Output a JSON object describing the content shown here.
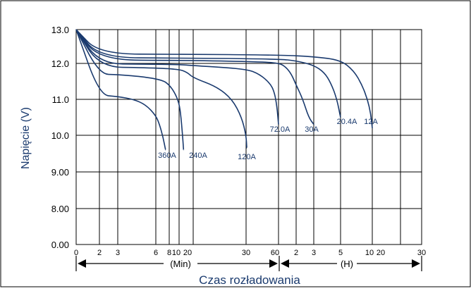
{
  "chart_data": {
    "type": "line",
    "ylabel": "Napięcie (V)",
    "xlabel": "Czas rozładowania",
    "x_scale": "log (minutes and hours)",
    "grid": true,
    "yticks": [
      "0.00",
      "8.00",
      "9.00",
      "10.0",
      "11.0",
      "12.0",
      "13.0"
    ],
    "xticks_min": [
      "0",
      "2",
      "3",
      "6",
      "8",
      "10",
      "20",
      "30",
      "60"
    ],
    "xticks_hour": [
      "2",
      "3",
      "5",
      "10",
      "20",
      "30"
    ],
    "x_unit_min": "(Min)",
    "x_unit_hour": "(H)",
    "colors": {
      "curve": "#1a3a6e",
      "text": "#1a3a6e",
      "grid": "#000000"
    },
    "series": [
      {
        "name": "360A",
        "points": [
          [
            0,
            13.0
          ],
          [
            2,
            11.12
          ],
          [
            3,
            11.08
          ],
          [
            4,
            11.0
          ],
          [
            5,
            10.85
          ],
          [
            6,
            10.55
          ],
          [
            6.5,
            10.3
          ],
          [
            7,
            9.95
          ],
          [
            7.4,
            9.6
          ]
        ]
      },
      {
        "name": "240A",
        "points": [
          [
            0,
            13.0
          ],
          [
            2,
            11.7
          ],
          [
            3,
            11.69
          ],
          [
            5,
            11.62
          ],
          [
            7,
            11.53
          ],
          [
            8,
            11.4
          ],
          [
            9,
            11.2
          ],
          [
            10,
            10.9
          ],
          [
            11,
            10.5
          ],
          [
            12,
            9.9
          ],
          [
            12.5,
            9.6
          ]
        ]
      },
      {
        "name": "120A",
        "points": [
          [
            0,
            13.0
          ],
          [
            2,
            11.9
          ],
          [
            5,
            11.88
          ],
          [
            10,
            11.84
          ],
          [
            15,
            11.75
          ],
          [
            20,
            11.6
          ],
          [
            24,
            11.35
          ],
          [
            27,
            11.0
          ],
          [
            29,
            10.5
          ],
          [
            30,
            10.0
          ],
          [
            30.5,
            9.65
          ]
        ]
      },
      {
        "name": "72.0A",
        "points": [
          [
            0,
            13.0
          ],
          [
            2,
            11.99
          ],
          [
            5,
            11.98
          ],
          [
            10,
            11.97
          ],
          [
            20,
            11.94
          ],
          [
            30,
            11.85
          ],
          [
            40,
            11.7
          ],
          [
            50,
            11.45
          ],
          [
            55,
            11.2
          ],
          [
            58,
            10.8
          ],
          [
            60,
            10.3
          ]
        ]
      },
      {
        "name": "30A",
        "points": [
          [
            0,
            13.0
          ],
          [
            2,
            12.1
          ],
          [
            10,
            12.09
          ],
          [
            30,
            12.06
          ],
          [
            60,
            12.02
          ],
          [
            80,
            11.9
          ],
          [
            100,
            11.7
          ],
          [
            120,
            11.4
          ],
          [
            140,
            11.0
          ],
          [
            160,
            10.5
          ],
          [
            180,
            10.3
          ]
        ]
      },
      {
        "name": "20.4A",
        "points": [
          [
            0,
            13.0
          ],
          [
            2,
            12.17
          ],
          [
            10,
            12.16
          ],
          [
            60,
            12.13
          ],
          [
            120,
            12.08
          ],
          [
            180,
            11.95
          ],
          [
            220,
            11.75
          ],
          [
            250,
            11.45
          ],
          [
            280,
            11.0
          ],
          [
            300,
            10.5
          ]
        ]
      },
      {
        "name": "12A",
        "points": [
          [
            0,
            13.0
          ],
          [
            2,
            12.28
          ],
          [
            10,
            12.27
          ],
          [
            60,
            12.25
          ],
          [
            180,
            12.2
          ],
          [
            300,
            12.1
          ],
          [
            400,
            11.8
          ],
          [
            480,
            11.4
          ],
          [
            540,
            11.0
          ],
          [
            580,
            10.6
          ],
          [
            600,
            10.2
          ]
        ]
      }
    ],
    "label_texts": [
      "360A",
      "240A",
      "120A",
      "72.0A",
      "30A",
      "20.4A",
      "12A"
    ]
  }
}
